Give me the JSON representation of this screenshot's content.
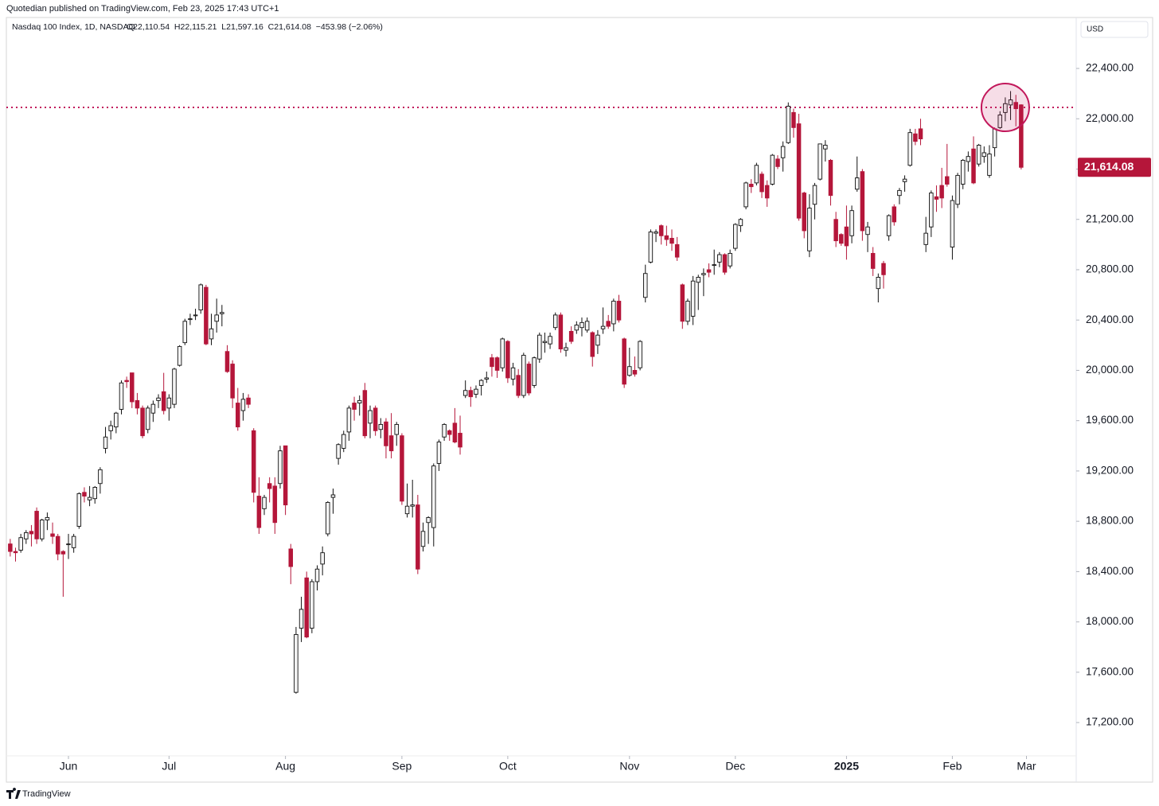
{
  "header": {
    "publisher": "Quotedian published on TradingView.com, Feb 23, 2025 17:43 UTC+1",
    "currency": "USD",
    "brand": "TradingView"
  },
  "chart_data": {
    "type": "candlestick",
    "title": "Nasdaq 100 Index, 1D, NASDAQ",
    "ohlc_label": "O22,110.54  H22,115.21  L21,597.16  C21,614.08  −453.98 (−2.06%)",
    "up_color": "#f4f4f4",
    "up_line": "#111111",
    "down_color": "#b5163a",
    "ylim": [
      16935,
      22805
    ],
    "yticks": [
      {
        "value": 17200,
        "label": "17,200.00"
      },
      {
        "value": 17600,
        "label": "17,600.00"
      },
      {
        "value": 18000,
        "label": "18,000.00"
      },
      {
        "value": 18400,
        "label": "18,400.00"
      },
      {
        "value": 18800,
        "label": "18,800.00"
      },
      {
        "value": 19200,
        "label": "19,200.00"
      },
      {
        "value": 19600,
        "label": "19,600.00"
      },
      {
        "value": 20000,
        "label": "20,000.00"
      },
      {
        "value": 20400,
        "label": "20,400.00"
      },
      {
        "value": 20800,
        "label": "20,800.00"
      },
      {
        "value": 21200,
        "label": "21,200.00"
      },
      {
        "value": 21600,
        "label": "21,600.00"
      },
      {
        "value": 22000,
        "label": "22,000.00"
      },
      {
        "value": 22400,
        "label": "22,400.00"
      }
    ],
    "xlim": [
      -0.73,
      201.4
    ],
    "xticks": [
      {
        "value": 11,
        "label": "Jun"
      },
      {
        "value": 30,
        "label": "Jul"
      },
      {
        "value": 52,
        "label": "Aug"
      },
      {
        "value": 74,
        "label": "Sep"
      },
      {
        "value": 94,
        "label": "Oct"
      },
      {
        "value": 117,
        "label": "Nov"
      },
      {
        "value": 137,
        "label": "Dec"
      },
      {
        "value": 158,
        "label": "2025"
      },
      {
        "value": 178,
        "label": "Feb"
      },
      {
        "value": 192,
        "label": "Mar"
      }
    ],
    "last_price": {
      "value": 21614.08,
      "label": "21,614.08"
    },
    "resistance": 22090,
    "resistance_color": "#c2185b",
    "highlight_index": 188,
    "ohlc": [
      [
        18620,
        18660,
        18520,
        18560
      ],
      [
        18560,
        18590,
        18480,
        18550
      ],
      [
        18570,
        18700,
        18550,
        18670
      ],
      [
        18660,
        18730,
        18620,
        18710
      ],
      [
        18720,
        18770,
        18600,
        18700
      ],
      [
        18880,
        18910,
        18620,
        18660
      ],
      [
        18660,
        18820,
        18640,
        18810
      ],
      [
        18810,
        18870,
        18730,
        18830
      ],
      [
        18700,
        18790,
        18620,
        18680
      ],
      [
        18680,
        18700,
        18490,
        18540
      ],
      [
        18560,
        18570,
        18200,
        18540
      ],
      [
        18620,
        18700,
        18500,
        18620
      ],
      [
        18590,
        18700,
        18550,
        18680
      ],
      [
        18760,
        19030,
        18740,
        19020
      ],
      [
        19030,
        19070,
        18950,
        19000
      ],
      [
        18970,
        19080,
        18920,
        18990
      ],
      [
        18980,
        19080,
        18940,
        19070
      ],
      [
        19100,
        19230,
        19020,
        19210
      ],
      [
        19380,
        19550,
        19340,
        19470
      ],
      [
        19520,
        19600,
        19450,
        19560
      ],
      [
        19550,
        19670,
        19500,
        19660
      ],
      [
        19690,
        19920,
        19650,
        19900
      ],
      [
        19920,
        19950,
        19860,
        19910
      ],
      [
        19980,
        19980,
        19700,
        19750
      ],
      [
        19760,
        19820,
        19650,
        19700
      ],
      [
        19700,
        19720,
        19460,
        19480
      ],
      [
        19530,
        19720,
        19500,
        19700
      ],
      [
        19660,
        19760,
        19590,
        19730
      ],
      [
        19760,
        19810,
        19700,
        19780
      ],
      [
        19830,
        19980,
        19650,
        19680
      ],
      [
        19700,
        19810,
        19600,
        19780
      ],
      [
        19730,
        20020,
        19700,
        20010
      ],
      [
        20040,
        20200,
        20030,
        20190
      ],
      [
        20220,
        20410,
        20200,
        20390
      ],
      [
        20410,
        20450,
        20360,
        20410
      ],
      [
        20440,
        20490,
        20400,
        20440
      ],
      [
        20480,
        20690,
        20450,
        20680
      ],
      [
        20660,
        20680,
        20200,
        20210
      ],
      [
        20250,
        20450,
        20200,
        20330
      ],
      [
        20390,
        20570,
        20300,
        20440
      ],
      [
        20450,
        20520,
        20350,
        20460
      ],
      [
        20150,
        20200,
        19980,
        19990
      ],
      [
        20050,
        20080,
        19700,
        19780
      ],
      [
        19740,
        19860,
        19520,
        19550
      ],
      [
        19680,
        19820,
        19600,
        19770
      ],
      [
        19780,
        19810,
        19700,
        19730
      ],
      [
        19520,
        19540,
        18950,
        19030
      ],
      [
        19000,
        19150,
        18700,
        18750
      ],
      [
        18900,
        19010,
        18850,
        18990
      ],
      [
        19100,
        19150,
        18950,
        19060
      ],
      [
        19080,
        19150,
        18700,
        18790
      ],
      [
        19100,
        19400,
        19060,
        19360
      ],
      [
        19400,
        19400,
        18850,
        18930
      ],
      [
        18580,
        18620,
        18300,
        18440
      ],
      [
        17440,
        17960,
        17430,
        17900
      ],
      [
        17950,
        18200,
        17840,
        18100
      ],
      [
        18350,
        18400,
        17870,
        17880
      ],
      [
        17950,
        18340,
        17910,
        18320
      ],
      [
        18320,
        18450,
        18250,
        18420
      ],
      [
        18460,
        18600,
        18370,
        18550
      ],
      [
        18700,
        18960,
        18680,
        18950
      ],
      [
        18990,
        19060,
        18860,
        19010
      ],
      [
        19300,
        19420,
        19250,
        19410
      ],
      [
        19380,
        19520,
        19350,
        19490
      ],
      [
        19510,
        19720,
        19440,
        19700
      ],
      [
        19740,
        19790,
        19600,
        19690
      ],
      [
        19740,
        19800,
        19640,
        19760
      ],
      [
        19840,
        19900,
        19460,
        19480
      ],
      [
        19580,
        19720,
        19460,
        19680
      ],
      [
        19700,
        19720,
        19480,
        19520
      ],
      [
        19530,
        19620,
        19460,
        19570
      ],
      [
        19590,
        19620,
        19300,
        19400
      ],
      [
        19480,
        19660,
        19300,
        19360
      ],
      [
        19490,
        19590,
        19400,
        19570
      ],
      [
        19480,
        19500,
        18930,
        18960
      ],
      [
        18860,
        19100,
        18830,
        18920
      ],
      [
        18920,
        19130,
        18830,
        18930
      ],
      [
        18930,
        19010,
        18380,
        18420
      ],
      [
        18600,
        18790,
        18560,
        18720
      ],
      [
        18790,
        18840,
        18620,
        18830
      ],
      [
        18750,
        19260,
        18600,
        19240
      ],
      [
        19260,
        19450,
        19200,
        19430
      ],
      [
        19470,
        19580,
        19440,
        19570
      ],
      [
        19520,
        19530,
        19440,
        19490
      ],
      [
        19580,
        19700,
        19420,
        19430
      ],
      [
        19500,
        19640,
        19330,
        19390
      ],
      [
        19800,
        19920,
        19780,
        19840
      ],
      [
        19840,
        19870,
        19710,
        19790
      ],
      [
        19810,
        19880,
        19780,
        19850
      ],
      [
        19880,
        19930,
        19800,
        19920
      ],
      [
        19930,
        19990,
        19900,
        19940
      ],
      [
        20100,
        20130,
        19950,
        20030
      ],
      [
        20100,
        20110,
        19940,
        20000
      ],
      [
        20020,
        20260,
        19990,
        20250
      ],
      [
        20230,
        20240,
        19900,
        19940
      ],
      [
        19930,
        20060,
        19880,
        20020
      ],
      [
        19960,
        20010,
        19780,
        19800
      ],
      [
        19800,
        20140,
        19780,
        20120
      ],
      [
        20050,
        20070,
        19800,
        19820
      ],
      [
        19880,
        20110,
        19860,
        20100
      ],
      [
        20090,
        20300,
        20060,
        20280
      ],
      [
        20220,
        20300,
        20140,
        20230
      ],
      [
        20210,
        20300,
        20170,
        20270
      ],
      [
        20340,
        20460,
        20320,
        20440
      ],
      [
        20440,
        20460,
        20140,
        20170
      ],
      [
        20160,
        20220,
        20110,
        20180
      ],
      [
        20310,
        20350,
        20210,
        20230
      ],
      [
        20320,
        20390,
        20290,
        20360
      ],
      [
        20340,
        20420,
        20270,
        20380
      ],
      [
        20320,
        20420,
        20300,
        20390
      ],
      [
        20300,
        20310,
        20030,
        20110
      ],
      [
        20200,
        20320,
        20130,
        20280
      ],
      [
        20330,
        20500,
        20290,
        20350
      ],
      [
        20390,
        20440,
        20330,
        20350
      ],
      [
        20370,
        20570,
        20310,
        20550
      ],
      [
        20550,
        20600,
        20380,
        20400
      ],
      [
        20250,
        20260,
        19860,
        19890
      ],
      [
        19960,
        20180,
        19950,
        20030
      ],
      [
        20000,
        20110,
        19950,
        19970
      ],
      [
        20020,
        20240,
        20000,
        20230
      ],
      [
        20580,
        20840,
        20540,
        20770
      ],
      [
        20860,
        21120,
        20850,
        21100
      ],
      [
        21090,
        21120,
        21020,
        21100
      ],
      [
        21150,
        21160,
        21000,
        21070
      ],
      [
        21070,
        21150,
        20990,
        21040
      ],
      [
        21050,
        21120,
        20950,
        21010
      ],
      [
        21000,
        21060,
        20870,
        20900
      ],
      [
        20680,
        20690,
        20330,
        20390
      ],
      [
        20390,
        20570,
        20360,
        20550
      ],
      [
        20430,
        20750,
        20360,
        20710
      ],
      [
        20700,
        20760,
        20480,
        20740
      ],
      [
        20760,
        20810,
        20590,
        20770
      ],
      [
        20800,
        20850,
        20740,
        20780
      ],
      [
        20840,
        20960,
        20760,
        20840
      ],
      [
        20860,
        20940,
        20820,
        20920
      ],
      [
        20920,
        20930,
        20760,
        20780
      ],
      [
        20830,
        20960,
        20810,
        20930
      ],
      [
        20970,
        21170,
        20950,
        21160
      ],
      [
        21150,
        21210,
        21100,
        21200
      ],
      [
        21300,
        21500,
        21280,
        21490
      ],
      [
        21480,
        21520,
        21410,
        21460
      ],
      [
        21490,
        21650,
        21470,
        21630
      ],
      [
        21560,
        21580,
        21370,
        21420
      ],
      [
        21470,
        21510,
        21300,
        21370
      ],
      [
        21480,
        21720,
        21470,
        21710
      ],
      [
        21680,
        21710,
        21600,
        21620
      ],
      [
        21690,
        21820,
        21580,
        21780
      ],
      [
        21810,
        22130,
        21800,
        22100
      ],
      [
        22050,
        22080,
        21850,
        21930
      ],
      [
        21960,
        22040,
        21190,
        21210
      ],
      [
        21410,
        21420,
        21050,
        21110
      ],
      [
        20950,
        21400,
        20900,
        21290
      ],
      [
        21320,
        21490,
        21200,
        21470
      ],
      [
        21520,
        21800,
        21510,
        21800
      ],
      [
        21760,
        21830,
        21660,
        21790
      ],
      [
        21670,
        21680,
        21310,
        21390
      ],
      [
        21200,
        21260,
        20980,
        21030
      ],
      [
        21080,
        21090,
        20990,
        21010
      ],
      [
        21140,
        21310,
        20880,
        20990
      ],
      [
        21070,
        21310,
        21010,
        21270
      ],
      [
        21440,
        21700,
        21420,
        21530
      ],
      [
        21580,
        21600,
        21030,
        21110
      ],
      [
        21080,
        21180,
        20940,
        21140
      ],
      [
        20930,
        20980,
        20750,
        20810
      ],
      [
        20650,
        20770,
        20540,
        20740
      ],
      [
        20850,
        20870,
        20650,
        20760
      ],
      [
        21070,
        21240,
        21030,
        21230
      ],
      [
        21300,
        21320,
        21150,
        21180
      ],
      [
        21390,
        21450,
        21320,
        21430
      ],
      [
        21500,
        21550,
        21420,
        21520
      ],
      [
        21630,
        21920,
        21620,
        21890
      ],
      [
        21880,
        21920,
        21790,
        21820
      ],
      [
        21920,
        22000,
        21790,
        21840
      ],
      [
        21000,
        21220,
        20940,
        21090
      ],
      [
        21140,
        21430,
        21060,
        21410
      ],
      [
        21380,
        21470,
        21260,
        21360
      ],
      [
        21470,
        21610,
        21290,
        21370
      ],
      [
        21540,
        21800,
        21460,
        21480
      ],
      [
        20980,
        21390,
        20880,
        21350
      ],
      [
        21320,
        21570,
        21290,
        21550
      ],
      [
        21480,
        21680,
        21440,
        21670
      ],
      [
        21660,
        21740,
        21580,
        21700
      ],
      [
        21760,
        21860,
        21480,
        21490
      ],
      [
        21640,
        21800,
        21620,
        21790
      ],
      [
        21700,
        21780,
        21650,
        21730
      ],
      [
        21550,
        21790,
        21530,
        21720
      ],
      [
        21770,
        21930,
        21700,
        21920
      ],
      [
        21930,
        22060,
        21920,
        22030
      ],
      [
        22050,
        22170,
        21980,
        22120
      ],
      [
        22110,
        22220,
        21990,
        22150
      ],
      [
        22130,
        22190,
        21940,
        22080
      ],
      [
        22110.54,
        22115.21,
        21597.16,
        21614.08
      ]
    ]
  }
}
